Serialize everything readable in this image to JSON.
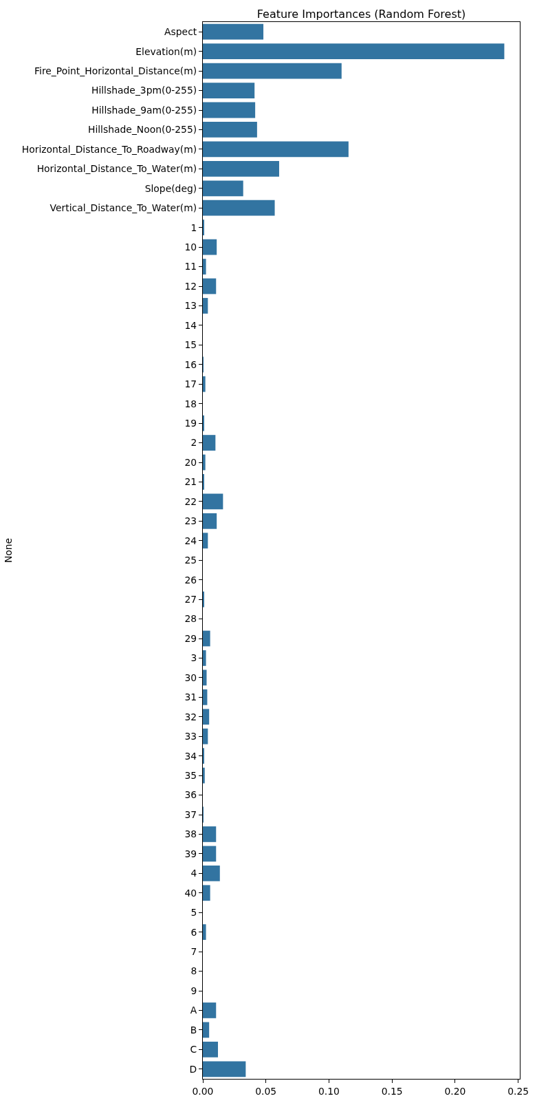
{
  "chart_data": {
    "type": "bar",
    "orientation": "horizontal",
    "title": "Feature Importances (Random Forest)",
    "ylabel": "None",
    "color": "#3274a1",
    "categories": [
      "Aspect",
      "Elevation(m)",
      "Fire_Point_Horizontal_Distance(m)",
      "Hillshade_3pm(0-255)",
      "Hillshade_9am(0-255)",
      "Hillshade_Noon(0-255)",
      "Horizontal_Distance_To_Roadway(m)",
      "Horizontal_Distance_To_Water(m)",
      "Slope(deg)",
      "Vertical_Distance_To_Water(m)",
      "1",
      "10",
      "11",
      "12",
      "13",
      "14",
      "15",
      "16",
      "17",
      "18",
      "19",
      "2",
      "20",
      "21",
      "22",
      "23",
      "24",
      "25",
      "26",
      "27",
      "28",
      "29",
      "3",
      "30",
      "31",
      "32",
      "33",
      "34",
      "35",
      "36",
      "37",
      "38",
      "39",
      "4",
      "40",
      "5",
      "6",
      "7",
      "8",
      "9",
      "A",
      "B",
      "C",
      "D"
    ],
    "values": [
      0.048,
      0.239,
      0.11,
      0.041,
      0.0415,
      0.043,
      0.1155,
      0.0605,
      0.032,
      0.057,
      0.0007,
      0.011,
      0.0025,
      0.0105,
      0.004,
      0,
      0,
      0.0005,
      0.002,
      0,
      0.0007,
      0.01,
      0.002,
      0.0008,
      0.016,
      0.011,
      0.004,
      0,
      0,
      0.0006,
      0,
      0.0058,
      0.0025,
      0.003,
      0.0035,
      0.005,
      0.004,
      0.0006,
      0.0015,
      0,
      0.0005,
      0.0105,
      0.0105,
      0.0135,
      0.0058,
      0,
      0.0025,
      0,
      0,
      0,
      0.0105,
      0.005,
      0.012,
      0.034
    ],
    "xlim": [
      0,
      0.2513
    ],
    "xticks": [
      {
        "value": 0,
        "label": "0.00"
      },
      {
        "value": 0.05,
        "label": "0.05"
      },
      {
        "value": 0.1,
        "label": "0.10"
      },
      {
        "value": 0.15,
        "label": "0.15"
      },
      {
        "value": 0.2,
        "label": "0.20"
      },
      {
        "value": 0.25,
        "label": "0.25"
      }
    ]
  }
}
